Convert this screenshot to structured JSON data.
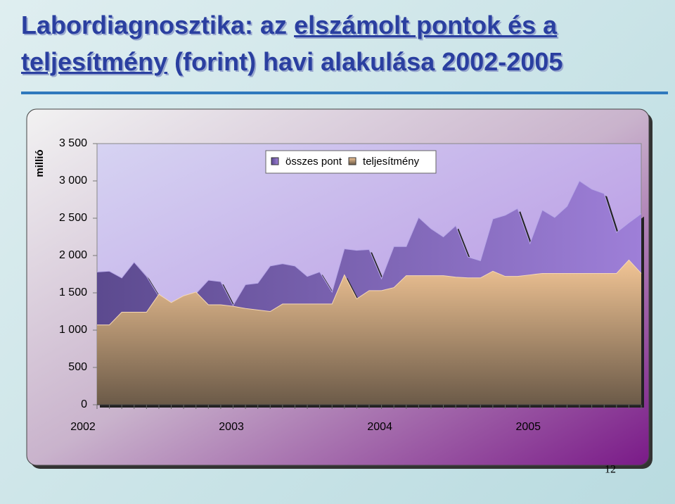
{
  "chart_data": {
    "type": "area",
    "title": [
      {
        "text": "Labordiagnosztika: az",
        "underline": false
      },
      {
        "text": "elszámolt pontok és a",
        "underline": true
      },
      {
        "text": "teljesítmény",
        "underline": true
      },
      {
        "text": "(forint) havi alakulása 2002-2005",
        "underline": false
      }
    ],
    "y_label": "millió",
    "categories": [
      "2002",
      null,
      null,
      null,
      null,
      null,
      null,
      null,
      null,
      null,
      null,
      null,
      "2003",
      null,
      null,
      null,
      null,
      null,
      null,
      null,
      null,
      null,
      null,
      null,
      "2004",
      null,
      null,
      null,
      null,
      null,
      null,
      null,
      null,
      null,
      null,
      null,
      "2005",
      null,
      null,
      null,
      null,
      null,
      null,
      null,
      null
    ],
    "series": [
      {
        "name": "összes pont",
        "color": "#7a62b8",
        "values": [
          1780,
          1790,
          1700,
          1910,
          1720,
          1450,
          1340,
          1440,
          1490,
          1670,
          1650,
          1330,
          1610,
          1630,
          1860,
          1890,
          1860,
          1720,
          1780,
          1510,
          2090,
          2070,
          2080,
          1690,
          2120,
          2120,
          2510,
          2360,
          2250,
          2400,
          1980,
          1930,
          2490,
          2540,
          2630,
          2160,
          2610,
          2510,
          2660,
          3000,
          2890,
          2830,
          2310,
          2440,
          2560
        ]
      },
      {
        "name": "teljesítmény",
        "color": "#e8bd8c",
        "values": [
          1070,
          1070,
          1240,
          1240,
          1240,
          1480,
          1370,
          1460,
          1510,
          1340,
          1340,
          1320,
          1290,
          1270,
          1250,
          1350,
          1350,
          1350,
          1350,
          1350,
          1740,
          1420,
          1530,
          1530,
          1570,
          1730,
          1730,
          1730,
          1730,
          1710,
          1700,
          1700,
          1790,
          1720,
          1720,
          1740,
          1760,
          1760,
          1760,
          1760,
          1760,
          1760,
          1760,
          1940,
          1760
        ]
      }
    ],
    "ylim": [
      0,
      3500
    ],
    "yticks": [
      0,
      {
        "value": 500,
        "label": "500"
      },
      {
        "value": 1000,
        "label": "1 000"
      },
      {
        "value": 1500,
        "label": "1 500"
      },
      {
        "value": 2000,
        "label": "2 000"
      },
      {
        "value": 2500,
        "label": "2 500"
      },
      {
        "value": 3000,
        "label": "3 000"
      },
      {
        "value": 3500,
        "label": "3 500"
      }
    ],
    "legend": "top",
    "page_number": "12"
  }
}
